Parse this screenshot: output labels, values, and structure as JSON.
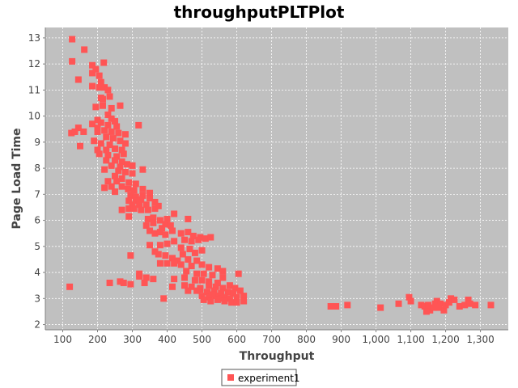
{
  "chart_data": {
    "type": "scatter",
    "title": "throughputPLTPlot",
    "xlabel": "Throughput",
    "ylabel": "Page Load Time",
    "xlim": [
      50,
      1380
    ],
    "ylim": [
      1.8,
      13.4
    ],
    "xticks": [
      100,
      200,
      300,
      400,
      500,
      600,
      700,
      800,
      900,
      1000,
      1100,
      1200,
      1300
    ],
    "xtick_labels": [
      "100",
      "200",
      "300",
      "400",
      "500",
      "600",
      "700",
      "800",
      "900",
      "1,000",
      "1,100",
      "1,200",
      "1,300"
    ],
    "yticks": [
      2,
      3,
      4,
      5,
      6,
      7,
      8,
      9,
      10,
      11,
      12,
      13
    ],
    "ytick_labels": [
      "2",
      "3",
      "4",
      "5",
      "6",
      "7",
      "8",
      "9",
      "10",
      "11",
      "12",
      "13"
    ],
    "grid": true,
    "legend_placement": "bottom-center",
    "colors": {
      "plot_background": "#c0c0c0",
      "marker": "#ff5555",
      "grid": "#ffffff"
    },
    "series": [
      {
        "name": "experiment1",
        "points": [
          [
            127,
            12.95
          ],
          [
            162,
            12.55
          ],
          [
            127,
            12.1
          ],
          [
            185,
            11.95
          ],
          [
            218,
            12.05
          ],
          [
            185,
            11.65
          ],
          [
            195,
            11.8
          ],
          [
            205,
            11.55
          ],
          [
            145,
            11.4
          ],
          [
            210,
            11.3
          ],
          [
            185,
            11.15
          ],
          [
            205,
            11.1
          ],
          [
            220,
            11.1
          ],
          [
            230,
            11.0
          ],
          [
            210,
            10.7
          ],
          [
            235,
            10.75
          ],
          [
            215,
            10.65
          ],
          [
            195,
            10.35
          ],
          [
            215,
            10.4
          ],
          [
            240,
            10.3
          ],
          [
            265,
            10.4
          ],
          [
            230,
            10.05
          ],
          [
            200,
            9.85
          ],
          [
            185,
            9.7
          ],
          [
            210,
            9.75
          ],
          [
            240,
            9.9
          ],
          [
            230,
            9.65
          ],
          [
            250,
            9.8
          ],
          [
            255,
            9.6
          ],
          [
            200,
            9.55
          ],
          [
            220,
            9.45
          ],
          [
            145,
            9.55
          ],
          [
            125,
            9.35
          ],
          [
            135,
            9.4
          ],
          [
            160,
            9.4
          ],
          [
            200,
            9.4
          ],
          [
            240,
            9.4
          ],
          [
            260,
            9.35
          ],
          [
            280,
            9.3
          ],
          [
            225,
            9.2
          ],
          [
            245,
            9.15
          ],
          [
            265,
            9.05
          ],
          [
            190,
            9.05
          ],
          [
            210,
            8.95
          ],
          [
            235,
            8.9
          ],
          [
            150,
            8.85
          ],
          [
            200,
            8.7
          ],
          [
            225,
            8.7
          ],
          [
            250,
            8.75
          ],
          [
            270,
            8.7
          ],
          [
            280,
            8.95
          ],
          [
            205,
            8.55
          ],
          [
            230,
            8.5
          ],
          [
            255,
            8.45
          ],
          [
            275,
            8.55
          ],
          [
            225,
            8.3
          ],
          [
            250,
            8.3
          ],
          [
            270,
            8.25
          ],
          [
            240,
            8.1
          ],
          [
            265,
            8.05
          ],
          [
            285,
            8.15
          ],
          [
            300,
            8.1
          ],
          [
            220,
            7.95
          ],
          [
            260,
            7.9
          ],
          [
            280,
            7.85
          ],
          [
            300,
            7.8
          ],
          [
            250,
            7.7
          ],
          [
            270,
            7.6
          ],
          [
            230,
            7.5
          ],
          [
            255,
            7.5
          ],
          [
            290,
            7.45
          ],
          [
            310,
            7.4
          ],
          [
            220,
            7.25
          ],
          [
            240,
            7.3
          ],
          [
            250,
            7.1
          ],
          [
            270,
            7.3
          ],
          [
            330,
            7.95
          ],
          [
            318,
            9.65
          ],
          [
            288,
            7.2
          ],
          [
            305,
            7.15
          ],
          [
            330,
            7.2
          ],
          [
            295,
            6.95
          ],
          [
            310,
            6.9
          ],
          [
            330,
            6.95
          ],
          [
            350,
            7.05
          ],
          [
            290,
            6.75
          ],
          [
            310,
            6.75
          ],
          [
            325,
            6.8
          ],
          [
            350,
            6.85
          ],
          [
            300,
            6.6
          ],
          [
            320,
            6.6
          ],
          [
            340,
            6.6
          ],
          [
            365,
            6.7
          ],
          [
            375,
            6.55
          ],
          [
            270,
            6.4
          ],
          [
            290,
            6.45
          ],
          [
            305,
            6.45
          ],
          [
            325,
            6.4
          ],
          [
            345,
            6.4
          ],
          [
            365,
            6.45
          ],
          [
            290,
            6.15
          ],
          [
            360,
            6.1
          ],
          [
            345,
            6.05
          ],
          [
            380,
            6.0
          ],
          [
            400,
            6.05
          ],
          [
            420,
            6.25
          ],
          [
            460,
            6.05
          ],
          [
            395,
            5.85
          ],
          [
            410,
            5.8
          ],
          [
            360,
            5.9
          ],
          [
            385,
            5.7
          ],
          [
            415,
            5.6
          ],
          [
            340,
            5.8
          ],
          [
            350,
            5.6
          ],
          [
            365,
            5.5
          ],
          [
            380,
            5.55
          ],
          [
            395,
            5.45
          ],
          [
            440,
            5.5
          ],
          [
            460,
            5.55
          ],
          [
            475,
            5.4
          ],
          [
            495,
            5.35
          ],
          [
            510,
            5.3
          ],
          [
            525,
            5.35
          ],
          [
            450,
            5.25
          ],
          [
            470,
            5.2
          ],
          [
            490,
            5.25
          ],
          [
            420,
            5.2
          ],
          [
            350,
            5.05
          ],
          [
            380,
            5.05
          ],
          [
            400,
            5.1
          ],
          [
            440,
            4.95
          ],
          [
            465,
            4.9
          ],
          [
            445,
            4.7
          ],
          [
            480,
            4.75
          ],
          [
            500,
            4.85
          ],
          [
            295,
            4.65
          ],
          [
            365,
            4.8
          ],
          [
            375,
            4.7
          ],
          [
            395,
            4.65
          ],
          [
            415,
            4.55
          ],
          [
            430,
            4.45
          ],
          [
            460,
            4.5
          ],
          [
            485,
            4.45
          ],
          [
            400,
            4.35
          ],
          [
            380,
            4.35
          ],
          [
            420,
            4.35
          ],
          [
            440,
            4.3
          ],
          [
            470,
            4.25
          ],
          [
            500,
            4.3
          ],
          [
            520,
            4.2
          ],
          [
            545,
            4.15
          ],
          [
            560,
            4.05
          ],
          [
            605,
            3.95
          ],
          [
            455,
            4.05
          ],
          [
            485,
            3.95
          ],
          [
            505,
            3.95
          ],
          [
            530,
            3.9
          ],
          [
            560,
            3.8
          ],
          [
            320,
            3.85
          ],
          [
            340,
            3.8
          ],
          [
            360,
            3.75
          ],
          [
            420,
            3.75
          ],
          [
            450,
            3.8
          ],
          [
            480,
            3.7
          ],
          [
            500,
            3.7
          ],
          [
            520,
            3.65
          ],
          [
            545,
            3.6
          ],
          [
            335,
            3.6
          ],
          [
            265,
            3.65
          ],
          [
            275,
            3.6
          ],
          [
            295,
            3.55
          ],
          [
            235,
            3.6
          ],
          [
            320,
            3.95
          ],
          [
            450,
            3.5
          ],
          [
            470,
            3.45
          ],
          [
            495,
            3.4
          ],
          [
            415,
            3.45
          ],
          [
            520,
            3.5
          ],
          [
            540,
            3.45
          ],
          [
            560,
            3.4
          ],
          [
            580,
            3.5
          ],
          [
            595,
            3.4
          ],
          [
            460,
            3.3
          ],
          [
            485,
            3.3
          ],
          [
            515,
            3.25
          ],
          [
            535,
            3.3
          ],
          [
            555,
            3.2
          ],
          [
            575,
            3.25
          ],
          [
            590,
            3.2
          ],
          [
            610,
            3.3
          ],
          [
            500,
            3.1
          ],
          [
            520,
            3.05
          ],
          [
            540,
            3.1
          ],
          [
            555,
            3.0
          ],
          [
            565,
            3.05
          ],
          [
            580,
            3.0
          ],
          [
            600,
            3.05
          ],
          [
            620,
            3.1
          ],
          [
            505,
            2.95
          ],
          [
            525,
            2.9
          ],
          [
            545,
            2.95
          ],
          [
            565,
            2.9
          ],
          [
            585,
            2.85
          ],
          [
            600,
            2.85
          ],
          [
            620,
            2.9
          ],
          [
            495,
            3.35
          ],
          [
            530,
            3.15
          ],
          [
            390,
            3.0
          ],
          [
            120,
            3.45
          ],
          [
            870,
            2.7
          ],
          [
            885,
            2.7
          ],
          [
            918,
            2.75
          ],
          [
            1013,
            2.65
          ],
          [
            1065,
            2.8
          ],
          [
            1095,
            3.05
          ],
          [
            1100,
            2.9
          ],
          [
            1130,
            2.75
          ],
          [
            1140,
            2.7
          ],
          [
            1150,
            2.75
          ],
          [
            1155,
            2.55
          ],
          [
            1165,
            2.65
          ],
          [
            1170,
            2.8
          ],
          [
            1175,
            2.9
          ],
          [
            1185,
            2.8
          ],
          [
            1195,
            2.55
          ],
          [
            1200,
            2.75
          ],
          [
            1210,
            2.85
          ],
          [
            1215,
            3.0
          ],
          [
            1225,
            2.95
          ],
          [
            1240,
            2.7
          ],
          [
            1255,
            2.75
          ],
          [
            1265,
            2.95
          ],
          [
            1270,
            2.8
          ],
          [
            1285,
            2.75
          ],
          [
            1330,
            2.75
          ],
          [
            1145,
            2.5
          ],
          [
            1180,
            2.65
          ]
        ]
      }
    ]
  }
}
